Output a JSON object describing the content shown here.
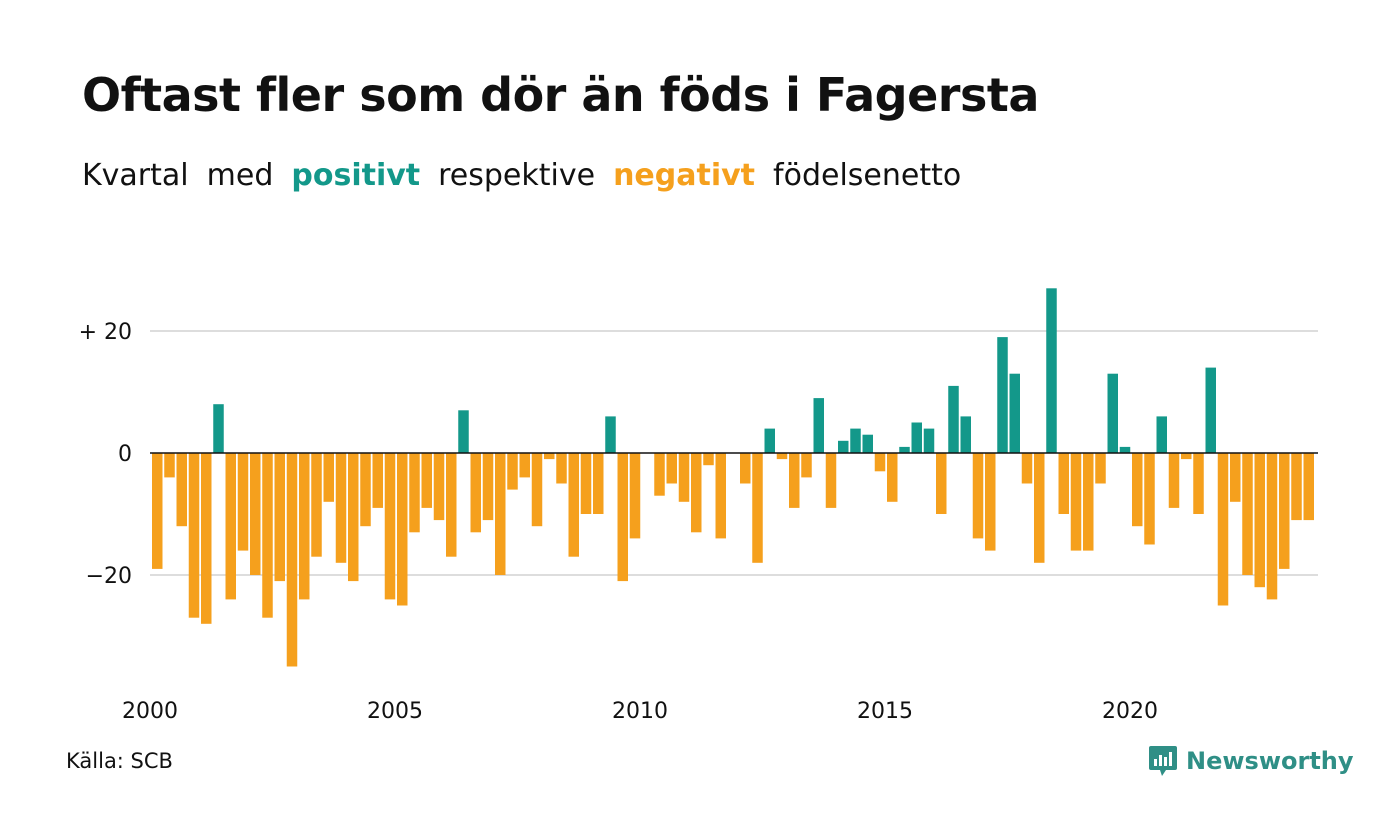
{
  "title": "Oftast fler som dör än föds i Fagersta",
  "subtitle": {
    "w1": "Kvartal",
    "w2": "med",
    "positive": "positivt",
    "w3": "respektive",
    "negative": "negativt",
    "w4": "födelsenetto"
  },
  "colors": {
    "positive": "#13988a",
    "negative": "#f5a01d",
    "grid": "#dddddd",
    "zero": "#111111"
  },
  "source": "Källa: SCB",
  "brand": {
    "name": "Newsworthy",
    "icon": "newsworthy-logo-icon"
  },
  "chart_data": {
    "type": "bar",
    "x_start": 2000,
    "quarters_per_year": 4,
    "y_ticks": [
      {
        "value": 20,
        "label": "+ 20"
      },
      {
        "value": 0,
        "label": "0"
      },
      {
        "value": -20,
        "label": "−20"
      }
    ],
    "x_ticks": [
      {
        "value": 2000,
        "label": "2000"
      },
      {
        "value": 2005,
        "label": "2005"
      },
      {
        "value": 2010,
        "label": "2010"
      },
      {
        "value": 2015,
        "label": "2015"
      },
      {
        "value": 2020,
        "label": "2020"
      }
    ],
    "ylim": [
      -38,
      30
    ],
    "grid": true,
    "values": [
      -19,
      -4,
      -12,
      -27,
      -28,
      8,
      -24,
      -16,
      -20,
      -27,
      -21,
      -35,
      -24,
      -17,
      -8,
      -18,
      -21,
      -12,
      -9,
      -24,
      -25,
      -13,
      -9,
      -11,
      -17,
      7,
      -13,
      -11,
      -20,
      -6,
      -4,
      -12,
      -1,
      -5,
      -17,
      -10,
      -10,
      6,
      -21,
      -14,
      0,
      -7,
      -5,
      -8,
      -13,
      -2,
      -14,
      0,
      -5,
      -18,
      4,
      -1,
      -9,
      -4,
      9,
      -9,
      2,
      4,
      3,
      -3,
      -8,
      1,
      5,
      4,
      -10,
      11,
      6,
      -14,
      -16,
      19,
      13,
      -5,
      -18,
      27,
      -10,
      -16,
      -16,
      -5,
      13,
      1,
      -12,
      -15,
      6,
      -9,
      -1,
      -10,
      14,
      -25,
      -8,
      -20,
      -22,
      -24,
      -19,
      -11,
      -11
    ]
  }
}
